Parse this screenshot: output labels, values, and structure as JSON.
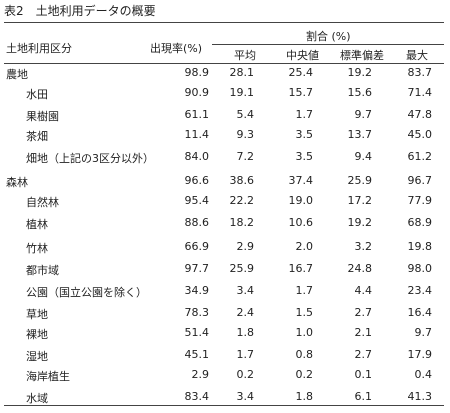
{
  "caption": "表2　土地利用データの概要",
  "header": {
    "col_category": "土地利用区分",
    "col_rate": "出現率(%)",
    "col_group": "割合 (%)",
    "col_mean": "平均",
    "col_median": "中央値",
    "col_sd": "標準偏差",
    "col_max": "最大"
  },
  "rows": [
    {
      "label": "農地",
      "rate": "98.9",
      "mean": "28.1",
      "median": "25.4",
      "sd": "19.2",
      "max": "83.7"
    },
    {
      "label": "水田",
      "rate": "90.9",
      "mean": "19.1",
      "median": "15.7",
      "sd": "15.6",
      "max": "71.4"
    },
    {
      "label": "果樹園",
      "rate": "61.1",
      "mean": "5.4",
      "median": "1.7",
      "sd": "9.7",
      "max": "47.8"
    },
    {
      "label": "茶畑",
      "rate": "11.4",
      "mean": "9.3",
      "median": "3.5",
      "sd": "13.7",
      "max": "45.0"
    },
    {
      "label": "畑地（上記の3区分以外）",
      "rate": "84.0",
      "mean": "7.2",
      "median": "3.5",
      "sd": "9.4",
      "max": "61.2"
    },
    {
      "label": "森林",
      "rate": "96.6",
      "mean": "38.6",
      "median": "37.4",
      "sd": "25.9",
      "max": "96.7"
    },
    {
      "label": "自然林",
      "rate": "95.4",
      "mean": "22.2",
      "median": "19.0",
      "sd": "17.2",
      "max": "77.9"
    },
    {
      "label": "植林",
      "rate": "88.6",
      "mean": "18.2",
      "median": "10.6",
      "sd": "19.2",
      "max": "68.9"
    },
    {
      "label": "竹林",
      "rate": "66.9",
      "mean": "2.9",
      "median": "2.0",
      "sd": "3.2",
      "max": "19.8"
    },
    {
      "label": "都市域",
      "rate": "97.7",
      "mean": "25.9",
      "median": "16.7",
      "sd": "24.8",
      "max": "98.0"
    },
    {
      "label": "公園（国立公園を除く）",
      "rate": "34.9",
      "mean": "3.4",
      "median": "1.7",
      "sd": "4.4",
      "max": "23.4"
    },
    {
      "label": "草地",
      "rate": "78.3",
      "mean": "2.4",
      "median": "1.5",
      "sd": "2.7",
      "max": "16.4"
    },
    {
      "label": "裸地",
      "rate": "51.4",
      "mean": "1.8",
      "median": "1.0",
      "sd": "2.1",
      "max": "9.7"
    },
    {
      "label": "湿地",
      "rate": "45.1",
      "mean": "1.7",
      "median": "0.8",
      "sd": "2.7",
      "max": "17.9"
    },
    {
      "label": "海岸植生",
      "rate": "2.9",
      "mean": "0.2",
      "median": "0.2",
      "sd": "0.1",
      "max": "0.4"
    },
    {
      "label": "水域",
      "rate": "83.4",
      "mean": "3.4",
      "median": "1.8",
      "sd": "6.1",
      "max": "41.3"
    }
  ]
}
